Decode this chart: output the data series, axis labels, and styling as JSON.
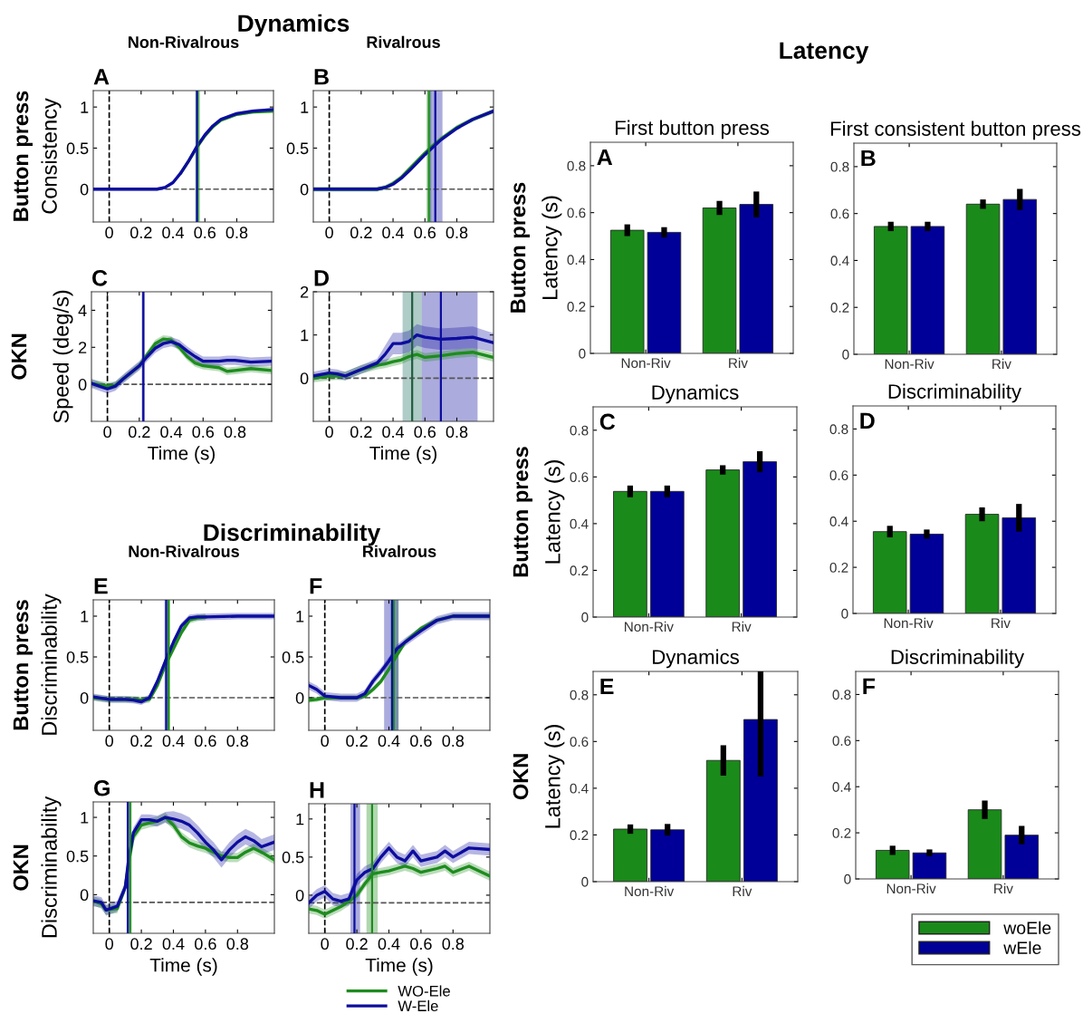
{
  "chart_data": [
    {
      "type": "line",
      "title": "Non-Rivalrous",
      "ylabel": "Consistency",
      "annotations": [
        "A",
        "Button press",
        "Dynamics"
      ],
      "xlim": [
        -0.1,
        1.03
      ],
      "xticks": [
        0,
        0.2,
        0.4,
        0.6,
        0.8
      ],
      "ylim": [
        -0.4,
        1.2
      ],
      "yticks": [
        0,
        0.5,
        1
      ],
      "grid": false,
      "series": [
        {
          "color": "#1e8c1e",
          "x": [
            0.45,
            0.5,
            0.55,
            0.6,
            0.65,
            0.7,
            0.8,
            0.9,
            1.03
          ],
          "values": [
            0.2,
            0.35,
            0.51,
            0.65,
            0.76,
            0.84,
            0.91,
            0.94,
            0.95
          ],
          "lower": [
            0.18,
            0.33,
            0.49,
            0.63,
            0.74,
            0.82,
            0.89,
            0.92,
            0.93
          ],
          "upper": [
            0.22,
            0.37,
            0.53,
            0.67,
            0.78,
            0.86,
            0.93,
            0.96,
            0.97
          ]
        },
        {
          "color": "#0d0d9e",
          "x": [
            -0.1,
            0.3,
            0.35,
            0.4,
            0.45,
            0.5,
            0.55,
            0.6,
            0.65,
            0.7,
            0.8,
            0.9,
            1.03
          ],
          "values": [
            0,
            0,
            0.02,
            0.08,
            0.2,
            0.35,
            0.52,
            0.66,
            0.77,
            0.85,
            0.92,
            0.95,
            0.97
          ],
          "lower": [
            -0.02,
            -0.02,
            0,
            0.06,
            0.18,
            0.33,
            0.5,
            0.64,
            0.75,
            0.83,
            0.9,
            0.93,
            0.95
          ],
          "upper": [
            0.02,
            0.02,
            0.04,
            0.1,
            0.22,
            0.37,
            0.54,
            0.68,
            0.79,
            0.87,
            0.94,
            0.97,
            0.99
          ]
        }
      ],
      "bands": [
        {
          "axis": "x",
          "from": 0.54,
          "to": 0.57,
          "color": "#1e8c1e"
        }
      ],
      "ref_lines": [
        {
          "axis": "x",
          "value": 0,
          "line_style": "dashed",
          "color": "#000000"
        },
        {
          "axis": "y",
          "value": 0,
          "line_style": "dashed",
          "color": "#555555"
        },
        {
          "axis": "x",
          "value": 0.555,
          "color": "#1e8c1e"
        },
        {
          "axis": "x",
          "value": 0.55,
          "color": "#0d0d9e"
        }
      ]
    },
    {
      "type": "line",
      "title": "Rivalrous",
      "annotations": [
        "B"
      ],
      "xlim": [
        -0.1,
        1.03
      ],
      "xticks": [
        0,
        0.2,
        0.4,
        0.6,
        0.8
      ],
      "ylim": [
        -0.4,
        1.2
      ],
      "yticks": [
        0,
        0.5,
        1
      ],
      "grid": false,
      "series": [
        {
          "color": "#1e8c1e",
          "x": [
            -0.1,
            0.3,
            0.35,
            0.4,
            0.45,
            0.5,
            0.55,
            0.6,
            0.65,
            0.7,
            0.8,
            0.9,
            1.03
          ],
          "values": [
            0,
            0,
            0.02,
            0.07,
            0.14,
            0.24,
            0.34,
            0.44,
            0.53,
            0.61,
            0.75,
            0.85,
            0.95
          ],
          "lower": [
            -0.03,
            -0.03,
            -0.01,
            0.04,
            0.11,
            0.21,
            0.31,
            0.41,
            0.5,
            0.58,
            0.72,
            0.82,
            0.92
          ],
          "upper": [
            0.03,
            0.03,
            0.05,
            0.1,
            0.17,
            0.27,
            0.37,
            0.47,
            0.56,
            0.64,
            0.78,
            0.88,
            0.98
          ]
        },
        {
          "color": "#0d0d9e",
          "x": [
            -0.1,
            0.3,
            0.35,
            0.4,
            0.45,
            0.5,
            0.55,
            0.6,
            0.65,
            0.7,
            0.8,
            0.9,
            1.03
          ],
          "values": [
            0,
            0,
            0.02,
            0.06,
            0.13,
            0.22,
            0.32,
            0.42,
            0.51,
            0.6,
            0.74,
            0.85,
            0.95
          ]
        }
      ],
      "bands": [
        {
          "axis": "x",
          "from": 0.61,
          "to": 0.64,
          "color": "#1e8c1e"
        },
        {
          "axis": "x",
          "from": 0.63,
          "to": 0.71,
          "color": "#0d0d9e"
        }
      ],
      "ref_lines": [
        {
          "axis": "x",
          "value": 0,
          "line_style": "dashed",
          "color": "#000000"
        },
        {
          "axis": "y",
          "value": 0,
          "line_style": "dashed",
          "color": "#555555"
        },
        {
          "axis": "x",
          "value": 0.625,
          "color": "#1e8c1e"
        },
        {
          "axis": "x",
          "value": 0.665,
          "color": "#0d0d9e"
        }
      ]
    },
    {
      "type": "line",
      "xlabel": "Time (s)",
      "ylabel": "Speed (deg/s)",
      "annotations": [
        "C",
        "OKN"
      ],
      "xlim": [
        -0.1,
        1.03
      ],
      "xticks": [
        0,
        0.2,
        0.4,
        0.6,
        0.8
      ],
      "ylim": [
        -2,
        5
      ],
      "yticks": [
        0,
        2,
        4
      ],
      "grid": false,
      "series": [
        {
          "color": "#1e8c1e",
          "x": [
            -0.1,
            0,
            0.05,
            0.1,
            0.2,
            0.25,
            0.3,
            0.35,
            0.4,
            0.45,
            0.5,
            0.55,
            0.6,
            0.7,
            0.75,
            0.8,
            0.9,
            1.03
          ],
          "values": [
            0.05,
            -0.1,
            -0.05,
            0.3,
            1.0,
            1.6,
            2.2,
            2.45,
            2.4,
            2.0,
            1.5,
            1.15,
            1.0,
            0.9,
            0.7,
            0.75,
            0.85,
            0.75
          ],
          "lower": [
            -0.15,
            -0.3,
            -0.25,
            0.1,
            0.8,
            1.4,
            2.0,
            2.25,
            2.2,
            1.8,
            1.3,
            0.95,
            0.8,
            0.7,
            0.5,
            0.55,
            0.65,
            0.55
          ],
          "upper": [
            0.25,
            0.1,
            0.15,
            0.5,
            1.2,
            1.8,
            2.4,
            2.65,
            2.6,
            2.2,
            1.7,
            1.35,
            1.2,
            1.1,
            0.9,
            0.95,
            1.05,
            0.95
          ]
        },
        {
          "color": "#0d0d9e",
          "x": [
            -0.1,
            0,
            0.05,
            0.1,
            0.2,
            0.25,
            0.3,
            0.35,
            0.4,
            0.45,
            0.5,
            0.55,
            0.6,
            0.7,
            0.75,
            0.8,
            0.9,
            1.03
          ],
          "values": [
            0.05,
            -0.25,
            -0.1,
            0.3,
            1.0,
            1.5,
            1.95,
            2.2,
            2.3,
            2.15,
            1.8,
            1.5,
            1.25,
            1.25,
            1.3,
            1.3,
            1.2,
            1.25
          ],
          "lower": [
            -0.2,
            -0.5,
            -0.35,
            0.05,
            0.75,
            1.25,
            1.7,
            1.95,
            2.05,
            1.9,
            1.55,
            1.25,
            1.0,
            1.0,
            1.05,
            1.05,
            0.95,
            1.0
          ],
          "upper": [
            0.3,
            0,
            0.15,
            0.55,
            1.25,
            1.75,
            2.2,
            2.45,
            2.55,
            2.4,
            2.05,
            1.75,
            1.5,
            1.5,
            1.55,
            1.55,
            1.45,
            1.5
          ]
        }
      ],
      "bands": [
        {
          "axis": "x",
          "from": 0.215,
          "to": 0.235,
          "color": "#0d0d9e"
        }
      ],
      "ref_lines": [
        {
          "axis": "x",
          "value": 0,
          "line_style": "dashed",
          "color": "#000000"
        },
        {
          "axis": "y",
          "value": 0,
          "line_style": "dashed",
          "color": "#555555"
        },
        {
          "axis": "x",
          "value": 0.225,
          "color": "#0d0d9e"
        }
      ]
    },
    {
      "type": "line",
      "xlabel": "Time (s)",
      "annotations": [
        "D"
      ],
      "xlim": [
        -0.1,
        1.03
      ],
      "xticks": [
        0,
        0.2,
        0.4,
        0.6,
        0.8
      ],
      "ylim": [
        -1,
        2
      ],
      "yticks": [
        0,
        1,
        2
      ],
      "grid": false,
      "series": [
        {
          "color": "#1e8c1e",
          "x": [
            -0.1,
            0,
            0.05,
            0.1,
            0.2,
            0.3,
            0.35,
            0.4,
            0.45,
            0.5,
            0.55,
            0.6,
            0.7,
            0.8,
            0.9,
            1.03
          ],
          "values": [
            0,
            0.05,
            0.06,
            0.05,
            0.2,
            0.3,
            0.33,
            0.38,
            0.42,
            0.5,
            0.55,
            0.48,
            0.52,
            0.57,
            0.6,
            0.48
          ],
          "lower": [
            -0.1,
            -0.05,
            -0.04,
            -0.05,
            0.1,
            0.2,
            0.23,
            0.28,
            0.32,
            0.4,
            0.45,
            0.38,
            0.42,
            0.47,
            0.5,
            0.38
          ],
          "upper": [
            0.1,
            0.15,
            0.16,
            0.15,
            0.3,
            0.4,
            0.43,
            0.48,
            0.52,
            0.6,
            0.65,
            0.58,
            0.62,
            0.67,
            0.7,
            0.58
          ]
        },
        {
          "color": "#0d0d9e",
          "x": [
            -0.1,
            0,
            0.05,
            0.1,
            0.2,
            0.3,
            0.35,
            0.4,
            0.45,
            0.5,
            0.55,
            0.6,
            0.7,
            0.8,
            0.9,
            1.03
          ],
          "values": [
            0.05,
            0.12,
            0.1,
            0.05,
            0.2,
            0.35,
            0.55,
            0.8,
            0.8,
            0.85,
            1.0,
            0.95,
            0.9,
            0.92,
            0.95,
            0.82
          ],
          "lower": [
            -0.05,
            0.02,
            0,
            -0.05,
            0.1,
            0.25,
            0.35,
            0.55,
            0.55,
            0.6,
            0.75,
            0.7,
            0.65,
            0.67,
            0.7,
            0.6
          ],
          "upper": [
            0.15,
            0.22,
            0.2,
            0.15,
            0.3,
            0.45,
            0.75,
            1.05,
            1.05,
            1.1,
            1.25,
            1.2,
            1.15,
            1.17,
            1.2,
            1.04
          ]
        }
      ],
      "bands": [
        {
          "axis": "x",
          "from": 0.46,
          "to": 0.58,
          "color": "#1e6e5e"
        },
        {
          "axis": "x",
          "from": 0.58,
          "to": 0.93,
          "color": "#0d0d9e"
        }
      ],
      "ref_lines": [
        {
          "axis": "x",
          "value": 0,
          "line_style": "dashed",
          "color": "#000000"
        },
        {
          "axis": "y",
          "value": 0,
          "line_style": "dashed",
          "color": "#555555"
        },
        {
          "axis": "x",
          "value": 0.52,
          "color": "#1e5e3e"
        },
        {
          "axis": "x",
          "value": 0.7,
          "color": "#0d0d9e"
        }
      ]
    },
    {
      "type": "line",
      "title": "Non-Rivalrous",
      "ylabel": "Discriminability",
      "annotations": [
        "E",
        "Button press",
        "Discriminability"
      ],
      "xlim": [
        -0.1,
        1.03
      ],
      "xticks": [
        0,
        0.2,
        0.4,
        0.6,
        0.8
      ],
      "ylim": [
        -0.4,
        1.2
      ],
      "yticks": [
        0,
        0.5,
        1
      ],
      "grid": false,
      "series": [
        {
          "color": "#1e8c1e",
          "x": [
            -0.1,
            0,
            0.1,
            0.15,
            0.2,
            0.25,
            0.3,
            0.35,
            0.4,
            0.45,
            0.5,
            0.55,
            0.6
          ],
          "values": [
            0,
            -0.02,
            -0.02,
            -0.02,
            -0.03,
            -0.02,
            0.15,
            0.4,
            0.6,
            0.8,
            0.95,
            0.98,
            0.99
          ],
          "lower": [
            -0.04,
            -0.06,
            -0.06,
            -0.06,
            -0.07,
            -0.06,
            0.11,
            0.36,
            0.56,
            0.76,
            0.91,
            0.94,
            0.95
          ],
          "upper": [
            0.04,
            0.02,
            0.02,
            0.02,
            0.01,
            0.02,
            0.19,
            0.44,
            0.64,
            0.84,
            0.99,
            1.02,
            1.03
          ]
        },
        {
          "color": "#0d0d9e",
          "x": [
            -0.1,
            0,
            0.1,
            0.15,
            0.2,
            0.25,
            0.3,
            0.35,
            0.4,
            0.45,
            0.5,
            0.55,
            0.6,
            0.8,
            1.03
          ],
          "values": [
            0.01,
            -0.02,
            -0.02,
            -0.03,
            -0.05,
            0.0,
            0.2,
            0.45,
            0.68,
            0.88,
            0.98,
            0.99,
            0.99,
            1.0,
            1.0
          ],
          "lower": [
            -0.03,
            -0.06,
            -0.06,
            -0.07,
            -0.09,
            -0.04,
            0.16,
            0.41,
            0.64,
            0.84,
            0.94,
            0.95,
            0.95,
            0.96,
            0.96
          ],
          "upper": [
            0.05,
            0.02,
            0.02,
            0.01,
            -0.01,
            0.04,
            0.24,
            0.49,
            0.72,
            0.92,
            1.02,
            1.03,
            1.03,
            1.04,
            1.04
          ]
        }
      ],
      "bands": [
        {
          "axis": "x",
          "from": 0.36,
          "to": 0.38,
          "color": "#1e8c1e"
        },
        {
          "axis": "x",
          "from": 0.345,
          "to": 0.365,
          "color": "#0d0d9e"
        }
      ],
      "ref_lines": [
        {
          "axis": "x",
          "value": 0,
          "line_style": "dashed",
          "color": "#000000"
        },
        {
          "axis": "y",
          "value": 0,
          "line_style": "dashed",
          "color": "#555555"
        },
        {
          "axis": "x",
          "value": 0.37,
          "color": "#1e8c1e"
        },
        {
          "axis": "x",
          "value": 0.355,
          "color": "#0d0d9e"
        }
      ]
    },
    {
      "type": "line",
      "title": "Rivalrous",
      "annotations": [
        "F"
      ],
      "xlim": [
        -0.1,
        1.03
      ],
      "xticks": [
        0,
        0.2,
        0.4,
        0.6,
        0.8
      ],
      "ylim": [
        -0.4,
        1.2
      ],
      "yticks": [
        0,
        0.5,
        1
      ],
      "grid": false,
      "series": [
        {
          "color": "#1e8c1e",
          "x": [
            -0.1,
            -0.05,
            0,
            0.1,
            0.2,
            0.25,
            0.3,
            0.35,
            0.4,
            0.45,
            0.5,
            0.6,
            0.7,
            0.8,
            1.03
          ],
          "values": [
            -0.03,
            -0.02,
            0,
            0,
            0,
            0.02,
            0.1,
            0.2,
            0.35,
            0.52,
            0.68,
            0.85,
            0.95,
            1.0,
            1.0
          ],
          "lower": [
            -0.06,
            -0.05,
            -0.03,
            -0.03,
            -0.03,
            -0.01,
            0.07,
            0.17,
            0.32,
            0.49,
            0.65,
            0.82,
            0.92,
            0.97,
            0.97
          ],
          "upper": [
            0,
            0.01,
            0.03,
            0.03,
            0.03,
            0.05,
            0.13,
            0.23,
            0.38,
            0.55,
            0.71,
            0.88,
            0.98,
            1.03,
            1.03
          ]
        },
        {
          "color": "#0d0d9e",
          "x": [
            -0.1,
            -0.05,
            0,
            0.1,
            0.2,
            0.25,
            0.3,
            0.35,
            0.4,
            0.45,
            0.5,
            0.6,
            0.7,
            0.8,
            1.03
          ],
          "values": [
            0.15,
            0.1,
            0.02,
            0,
            0,
            0.05,
            0.2,
            0.32,
            0.45,
            0.6,
            0.68,
            0.82,
            0.95,
            1.0,
            1.0
          ],
          "lower": [
            0.1,
            0.05,
            -0.03,
            -0.05,
            -0.05,
            0,
            0.15,
            0.27,
            0.4,
            0.55,
            0.63,
            0.77,
            0.9,
            0.95,
            0.95
          ],
          "upper": [
            0.2,
            0.15,
            0.07,
            0.05,
            0.05,
            0.1,
            0.25,
            0.37,
            0.5,
            0.65,
            0.73,
            0.87,
            1.0,
            1.05,
            1.05
          ]
        }
      ],
      "bands": [
        {
          "axis": "x",
          "from": 0.41,
          "to": 0.46,
          "color": "#1e8c1e"
        },
        {
          "axis": "x",
          "from": 0.37,
          "to": 0.46,
          "color": "#0d0d9e"
        }
      ],
      "ref_lines": [
        {
          "axis": "x",
          "value": 0,
          "line_style": "dashed",
          "color": "#000000"
        },
        {
          "axis": "y",
          "value": 0,
          "line_style": "dashed",
          "color": "#555555"
        },
        {
          "axis": "x",
          "value": 0.43,
          "color": "#1e8c1e"
        },
        {
          "axis": "x",
          "value": 0.42,
          "color": "#0d0d9e"
        }
      ]
    },
    {
      "type": "line",
      "xlabel": "Time (s)",
      "ylabel": "Discriminability",
      "annotations": [
        "G",
        "OKN"
      ],
      "xlim": [
        -0.1,
        1.03
      ],
      "xticks": [
        0,
        0.2,
        0.4,
        0.6,
        0.8
      ],
      "ylim": [
        -0.5,
        1.2
      ],
      "yticks": [
        0,
        0.5,
        1
      ],
      "grid": false,
      "series": [
        {
          "color": "#1e8c1e",
          "x": [
            -0.1,
            -0.05,
            -0.02,
            0.05,
            0.1,
            0.12,
            0.15,
            0.2,
            0.25,
            0.3,
            0.35,
            0.4,
            0.45,
            0.5,
            0.55,
            0.6,
            0.65,
            0.7,
            0.75,
            0.8,
            0.85,
            0.9,
            0.95,
            1.03
          ],
          "values": [
            -0.08,
            -0.12,
            -0.2,
            -0.18,
            0.1,
            0.4,
            0.75,
            0.9,
            0.93,
            0.95,
            1.0,
            0.9,
            0.75,
            0.67,
            0.63,
            0.6,
            0.55,
            0.5,
            0.48,
            0.48,
            0.55,
            0.6,
            0.55,
            0.45
          ],
          "lower": [
            -0.14,
            -0.18,
            -0.26,
            -0.24,
            0.04,
            0.34,
            0.69,
            0.84,
            0.87,
            0.89,
            0.94,
            0.84,
            0.69,
            0.61,
            0.57,
            0.54,
            0.49,
            0.44,
            0.42,
            0.42,
            0.49,
            0.54,
            0.49,
            0.39
          ],
          "upper": [
            -0.02,
            -0.06,
            -0.14,
            -0.12,
            0.16,
            0.46,
            0.81,
            0.96,
            0.99,
            1.01,
            1.06,
            0.96,
            0.81,
            0.73,
            0.69,
            0.66,
            0.61,
            0.56,
            0.54,
            0.54,
            0.61,
            0.66,
            0.61,
            0.51
          ]
        },
        {
          "color": "#0d0d9e",
          "x": [
            -0.1,
            -0.05,
            -0.02,
            0.05,
            0.1,
            0.12,
            0.15,
            0.2,
            0.25,
            0.3,
            0.35,
            0.4,
            0.45,
            0.5,
            0.55,
            0.6,
            0.65,
            0.7,
            0.75,
            0.8,
            0.85,
            0.9,
            0.95,
            1.03
          ],
          "values": [
            -0.08,
            -0.1,
            -0.2,
            -0.15,
            0.1,
            0.45,
            0.8,
            0.97,
            0.97,
            0.95,
            1.0,
            0.98,
            0.95,
            0.9,
            0.8,
            0.68,
            0.58,
            0.45,
            0.58,
            0.68,
            0.75,
            0.7,
            0.62,
            0.68
          ],
          "lower": [
            -0.15,
            -0.17,
            -0.27,
            -0.22,
            0.03,
            0.38,
            0.73,
            0.9,
            0.9,
            0.88,
            0.93,
            0.88,
            0.85,
            0.8,
            0.7,
            0.58,
            0.48,
            0.35,
            0.48,
            0.58,
            0.65,
            0.6,
            0.52,
            0.58
          ],
          "upper": [
            -0.01,
            -0.03,
            -0.13,
            -0.08,
            0.17,
            0.52,
            0.87,
            1.04,
            1.04,
            1.02,
            1.07,
            1.08,
            1.05,
            1.0,
            0.9,
            0.78,
            0.68,
            0.55,
            0.68,
            0.78,
            0.85,
            0.8,
            0.72,
            0.78
          ]
        }
      ],
      "bands": [
        {
          "axis": "x",
          "from": 0.125,
          "to": 0.14,
          "color": "#1e8c1e"
        },
        {
          "axis": "x",
          "from": 0.11,
          "to": 0.13,
          "color": "#0d0d9e"
        }
      ],
      "ref_lines": [
        {
          "axis": "x",
          "value": 0,
          "line_style": "dashed",
          "color": "#000000"
        },
        {
          "axis": "y",
          "value": -0.1,
          "line_style": "dashed",
          "color": "#555555"
        },
        {
          "axis": "x",
          "value": 0.13,
          "color": "#1e8c1e"
        },
        {
          "axis": "x",
          "value": 0.115,
          "color": "#0d0d9e"
        }
      ]
    },
    {
      "type": "line",
      "xlabel": "Time (s)",
      "annotations": [
        "H"
      ],
      "xlim": [
        -0.1,
        1.03
      ],
      "xticks": [
        0,
        0.2,
        0.4,
        0.6,
        0.8
      ],
      "ylim": [
        -0.5,
        1.2
      ],
      "yticks": [
        0,
        0.5,
        1
      ],
      "grid": false,
      "legend": "bottom",
      "series": [
        {
          "name": "WO-Ele",
          "color": "#1e8c1e",
          "x": [
            -0.1,
            -0.05,
            0,
            0.05,
            0.1,
            0.15,
            0.2,
            0.25,
            0.3,
            0.35,
            0.4,
            0.45,
            0.5,
            0.55,
            0.6,
            0.7,
            0.75,
            0.8,
            0.9,
            1.03
          ],
          "values": [
            -0.18,
            -0.2,
            -0.25,
            -0.2,
            -0.15,
            -0.08,
            0,
            0.15,
            0.28,
            0.3,
            0.32,
            0.35,
            0.38,
            0.35,
            0.3,
            0.35,
            0.38,
            0.3,
            0.38,
            0.25
          ],
          "lower": [
            -0.24,
            -0.26,
            -0.31,
            -0.26,
            -0.21,
            -0.14,
            -0.06,
            0.09,
            0.22,
            0.24,
            0.26,
            0.29,
            0.32,
            0.29,
            0.24,
            0.29,
            0.32,
            0.24,
            0.32,
            0.19
          ],
          "upper": [
            -0.12,
            -0.14,
            -0.19,
            -0.14,
            -0.09,
            -0.02,
            0.06,
            0.21,
            0.34,
            0.36,
            0.38,
            0.41,
            0.44,
            0.41,
            0.36,
            0.41,
            0.44,
            0.36,
            0.44,
            0.31
          ]
        },
        {
          "name": "W-Ele",
          "color": "#0d0d9e",
          "x": [
            -0.1,
            -0.05,
            0,
            0.05,
            0.1,
            0.15,
            0.2,
            0.25,
            0.3,
            0.35,
            0.4,
            0.45,
            0.5,
            0.55,
            0.6,
            0.7,
            0.75,
            0.8,
            0.9,
            1.03
          ],
          "values": [
            -0.1,
            0,
            0.05,
            -0.05,
            -0.08,
            -0.05,
            0.2,
            0.3,
            0.35,
            0.5,
            0.62,
            0.5,
            0.45,
            0.58,
            0.45,
            0.5,
            0.58,
            0.5,
            0.62,
            0.6
          ],
          "lower": [
            -0.18,
            -0.08,
            -0.03,
            -0.13,
            -0.16,
            -0.13,
            0.12,
            0.22,
            0.27,
            0.42,
            0.54,
            0.42,
            0.37,
            0.5,
            0.37,
            0.42,
            0.5,
            0.42,
            0.54,
            0.52
          ],
          "upper": [
            -0.02,
            0.08,
            0.13,
            0.03,
            0,
            0.03,
            0.28,
            0.38,
            0.43,
            0.58,
            0.7,
            0.58,
            0.53,
            0.66,
            0.53,
            0.58,
            0.66,
            0.58,
            0.7,
            0.68
          ]
        }
      ],
      "bands": [
        {
          "axis": "x",
          "from": 0.26,
          "to": 0.33,
          "color": "#1e8c1e"
        },
        {
          "axis": "x",
          "from": 0.16,
          "to": 0.22,
          "color": "#0d0d9e"
        }
      ],
      "ref_lines": [
        {
          "axis": "x",
          "value": 0,
          "line_style": "dashed",
          "color": "#000000"
        },
        {
          "axis": "y",
          "value": -0.1,
          "line_style": "dashed",
          "color": "#555555"
        },
        {
          "axis": "x",
          "value": 0.295,
          "color": "#1e8c1e"
        },
        {
          "axis": "x",
          "value": 0.185,
          "color": "#0d0d9e"
        }
      ]
    },
    {
      "type": "bar",
      "title": "First button press",
      "ylabel": "Latency (s)",
      "annotations": [
        "A",
        "Button press",
        "Latency"
      ],
      "categories": [
        "Non-Riv",
        "Riv"
      ],
      "ylim": [
        0,
        0.9
      ],
      "yticks": [
        0,
        0.2,
        0.4,
        0.6,
        0.8
      ],
      "grid": false,
      "series": [
        {
          "color": "#1a8a1a",
          "values": [
            0.525,
            0.62
          ],
          "errors": [
            0.025,
            0.03
          ]
        },
        {
          "color": "#000099",
          "values": [
            0.516,
            0.635
          ],
          "errors": [
            0.022,
            0.055
          ]
        }
      ]
    },
    {
      "type": "bar",
      "title": "First consistent button press",
      "annotations": [
        "B"
      ],
      "categories": [
        "Non-Riv",
        "Riv"
      ],
      "ylim": [
        0,
        0.9
      ],
      "yticks": [
        0,
        0.2,
        0.4,
        0.6,
        0.8
      ],
      "grid": false,
      "series": [
        {
          "color": "#1a8a1a",
          "values": [
            0.545,
            0.64
          ],
          "errors": [
            0.02,
            0.02
          ]
        },
        {
          "color": "#000099",
          "values": [
            0.545,
            0.66
          ],
          "errors": [
            0.02,
            0.045
          ]
        }
      ]
    },
    {
      "type": "bar",
      "title": "Dynamics",
      "ylabel": "Latency (s)",
      "annotations": [
        "C",
        "Button press"
      ],
      "categories": [
        "Non-Riv",
        "Riv"
      ],
      "ylim": [
        0,
        0.9
      ],
      "yticks": [
        0,
        0.2,
        0.4,
        0.6,
        0.8
      ],
      "grid": false,
      "series": [
        {
          "color": "#1a8a1a",
          "values": [
            0.538,
            0.63
          ],
          "errors": [
            0.025,
            0.02
          ]
        },
        {
          "color": "#000099",
          "values": [
            0.538,
            0.665
          ],
          "errors": [
            0.025,
            0.045
          ]
        }
      ]
    },
    {
      "type": "bar",
      "title": "Discriminability",
      "annotations": [
        "D"
      ],
      "categories": [
        "Non-Riv",
        "Riv"
      ],
      "ylim": [
        0,
        0.9
      ],
      "yticks": [
        0,
        0.2,
        0.4,
        0.6,
        0.8
      ],
      "grid": false,
      "series": [
        {
          "color": "#1a8a1a",
          "values": [
            0.355,
            0.43
          ],
          "errors": [
            0.025,
            0.03
          ]
        },
        {
          "color": "#000099",
          "values": [
            0.344,
            0.415
          ],
          "errors": [
            0.02,
            0.06
          ]
        }
      ]
    },
    {
      "type": "bar",
      "title": "Dynamics",
      "ylabel": "Latency (s)",
      "annotations": [
        "E",
        "OKN"
      ],
      "categories": [
        "Non-Riv",
        "Riv"
      ],
      "ylim": [
        0,
        0.9
      ],
      "yticks": [
        0,
        0.2,
        0.4,
        0.6,
        0.8
      ],
      "grid": false,
      "series": [
        {
          "color": "#1a8a1a",
          "values": [
            0.225,
            0.519
          ],
          "errors": [
            0.02,
            0.065
          ]
        },
        {
          "color": "#000099",
          "values": [
            0.222,
            0.694
          ],
          "errors": [
            0.025,
            [
              0.45,
              0.9
            ]
          ]
        }
      ]
    },
    {
      "type": "bar",
      "title": "Discriminability",
      "annotations": [
        "F"
      ],
      "categories": [
        "Non-Riv",
        "Riv"
      ],
      "ylim": [
        0,
        0.9
      ],
      "yticks": [
        0,
        0.2,
        0.4,
        0.6,
        0.8
      ],
      "grid": false,
      "legend": "bottom right",
      "series": [
        {
          "name": "woEle",
          "color": "#1a8a1a",
          "values": [
            0.124,
            0.3
          ],
          "errors": [
            0.02,
            0.04
          ]
        },
        {
          "name": "wEle",
          "color": "#000099",
          "values": [
            0.113,
            0.19
          ],
          "errors": [
            0.015,
            0.04
          ]
        }
      ]
    }
  ]
}
